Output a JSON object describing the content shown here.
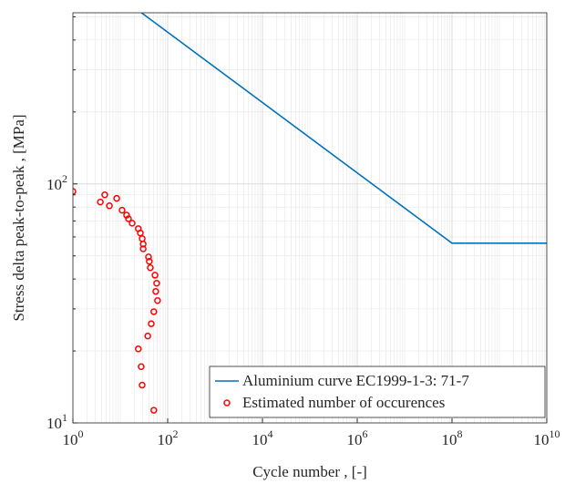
{
  "chart_data": {
    "type": "line",
    "xlabel": "Cycle number , [-]",
    "ylabel": "Stress delta peak-to-peak , [MPa]",
    "xscale": "log",
    "yscale": "log",
    "xlim": [
      1,
      10000000000
    ],
    "ylim": [
      10,
      520
    ],
    "xticks": [
      {
        "value": 1,
        "label": "10^0"
      },
      {
        "value": 100,
        "label": "10^2"
      },
      {
        "value": 10000,
        "label": "10^4"
      },
      {
        "value": 1000000,
        "label": "10^6"
      },
      {
        "value": 100000000,
        "label": "10^8"
      },
      {
        "value": 10000000000,
        "label": "10^10"
      }
    ],
    "yticks": [
      {
        "value": 10,
        "label": "10^1"
      },
      {
        "value": 100,
        "label": "10^2"
      }
    ],
    "grid": true,
    "minor_grid": true,
    "legend": "lower right",
    "series": [
      {
        "name": "Aluminium curve EC1999-1-3: 71-7",
        "type": "line",
        "color": "#0072bd",
        "x": [
          28,
          100000000,
          10000000000
        ],
        "y": [
          520,
          56.5,
          56.5
        ]
      },
      {
        "name": "Estimated number of occurences",
        "type": "scatter",
        "color": "#ff0000",
        "x": [
          1,
          3.8,
          4.7,
          5.9,
          8.4,
          10.9,
          13.6,
          14.9,
          17.8,
          24,
          26.5,
          29,
          30.4,
          30.4,
          39.4,
          41,
          43,
          54,
          58.6,
          56,
          61,
          51,
          45,
          38,
          24,
          27.6,
          28.9,
          51
        ],
        "y": [
          93,
          84,
          90,
          81,
          87,
          77.6,
          74,
          71.5,
          68.5,
          65,
          62.3,
          59,
          56,
          53.5,
          49.5,
          47.4,
          44.6,
          41.5,
          38.4,
          35.5,
          32.5,
          29.2,
          26,
          23.1,
          20.4,
          17.2,
          14.4,
          11.3
        ]
      }
    ]
  }
}
